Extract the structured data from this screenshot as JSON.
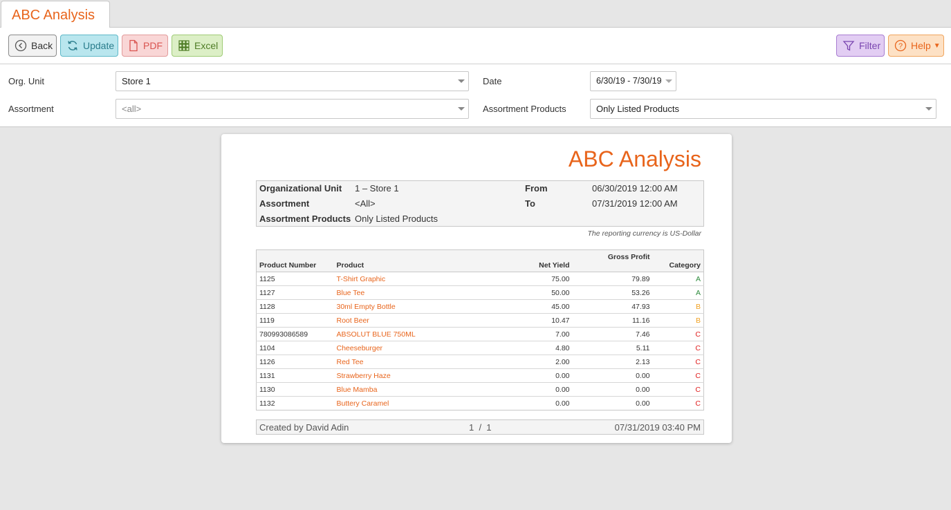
{
  "tab": {
    "title": "ABC Analysis"
  },
  "toolbar": {
    "back": "Back",
    "update": "Update",
    "pdf": "PDF",
    "excel": "Excel",
    "filter": "Filter",
    "help": "Help"
  },
  "filters": {
    "org_unit_label": "Org. Unit",
    "org_unit_value": "Store 1",
    "date_label": "Date",
    "date_value": "6/30/19 - 7/30/19",
    "assortment_label": "Assortment",
    "assortment_value": "<all>",
    "assortment_products_label": "Assortment Products",
    "assortment_products_value": "Only Listed Products"
  },
  "report": {
    "title": "ABC Analysis",
    "info": {
      "org_unit_label": "Organizational Unit",
      "org_unit_value": "1 – Store 1",
      "assortment_label": "Assortment",
      "assortment_value": "<All>",
      "assortment_products_label": "Assortment Products",
      "assortment_products_value": "Only Listed Products",
      "from_label": "From",
      "from_value": "06/30/2019 12:00 AM",
      "to_label": "To",
      "to_value": "07/31/2019 12:00 AM"
    },
    "currency_note": "The reporting currency is US-Dollar",
    "columns": {
      "product_number": "Product Number",
      "product": "Product",
      "net_yield": "Net Yield",
      "gross_profit": "Gross Profit",
      "category": "Category"
    },
    "rows": [
      {
        "number": "1125",
        "product": "T-Shirt Graphic",
        "net_yield": "75.00",
        "gross_profit": "79.89",
        "category": "A"
      },
      {
        "number": "1127",
        "product": "Blue Tee",
        "net_yield": "50.00",
        "gross_profit": "53.26",
        "category": "A"
      },
      {
        "number": "1128",
        "product": "30ml Empty Bottle",
        "net_yield": "45.00",
        "gross_profit": "47.93",
        "category": "B"
      },
      {
        "number": "1119",
        "product": "Root Beer",
        "net_yield": "10.47",
        "gross_profit": "11.16",
        "category": "B"
      },
      {
        "number": "780993086589",
        "product": "ABSOLUT BLUE 750ML",
        "net_yield": "7.00",
        "gross_profit": "7.46",
        "category": "C"
      },
      {
        "number": "1104",
        "product": "Cheeseburger",
        "net_yield": "4.80",
        "gross_profit": "5.11",
        "category": "C"
      },
      {
        "number": "1126",
        "product": "Red Tee",
        "net_yield": "2.00",
        "gross_profit": "2.13",
        "category": "C"
      },
      {
        "number": "1131",
        "product": "Strawberry Haze",
        "net_yield": "0.00",
        "gross_profit": "0.00",
        "category": "C"
      },
      {
        "number": "1130",
        "product": "Blue Mamba",
        "net_yield": "0.00",
        "gross_profit": "0.00",
        "category": "C"
      },
      {
        "number": "1132",
        "product": "Buttery Caramel",
        "net_yield": "0.00",
        "gross_profit": "0.00",
        "category": "C"
      }
    ],
    "footer": {
      "created_by": "Created by David Adin",
      "page": "1  /  1",
      "timestamp": "07/31/2019 03:40 PM"
    }
  },
  "colors": {
    "accent": "#e8641b",
    "category_a": "#2e8b3d",
    "category_b": "#f0a020",
    "category_c": "#e02020"
  }
}
